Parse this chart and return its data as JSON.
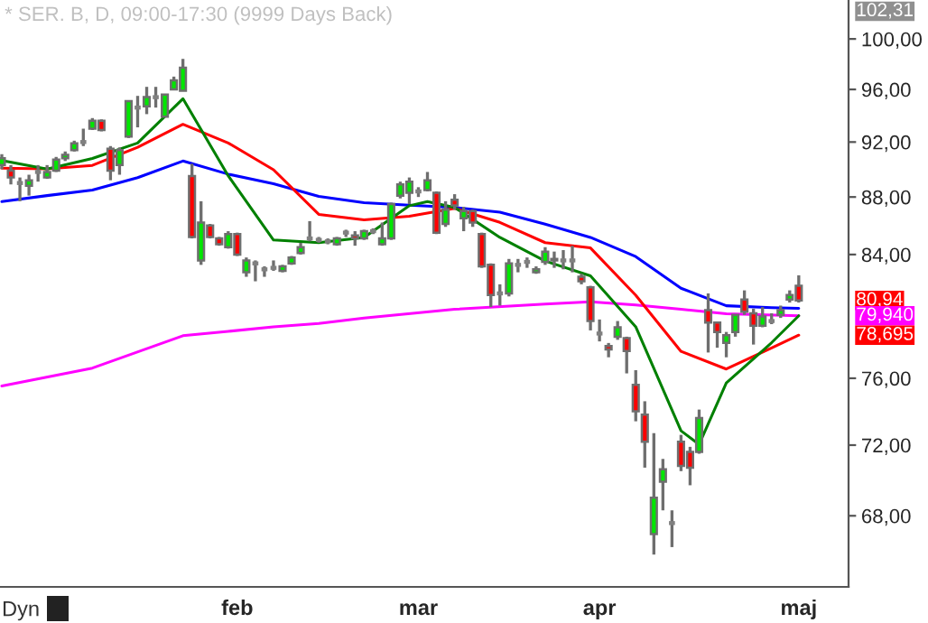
{
  "chart_data": {
    "type": "candlestick",
    "title": "* SER. B, D, 09:00-17:30 (9999 Days Back)",
    "categories": [
      null,
      null,
      null,
      null,
      null,
      null,
      null,
      null,
      null,
      null,
      null,
      null,
      null,
      null,
      null,
      null,
      null,
      null,
      null,
      null,
      null,
      null,
      null,
      null,
      null,
      null,
      "feb",
      null,
      null,
      null,
      null,
      null,
      null,
      null,
      null,
      null,
      null,
      null,
      null,
      null,
      null,
      null,
      null,
      null,
      null,
      null,
      "mar",
      null,
      null,
      null,
      null,
      null,
      null,
      null,
      null,
      null,
      null,
      null,
      null,
      null,
      null,
      null,
      null,
      null,
      null,
      null,
      "apr",
      null,
      null,
      null,
      null,
      null,
      null,
      null,
      null,
      null,
      null,
      null,
      null,
      null,
      null,
      null,
      null,
      null,
      null,
      null,
      null,
      null,
      "maj"
    ],
    "ohlc": [
      [
        90.3,
        91.1,
        90.0,
        90.8
      ],
      [
        89.9,
        90.3,
        88.9,
        89.4
      ],
      [
        89.0,
        89.4,
        87.7,
        89.0
      ],
      [
        88.8,
        89.6,
        88.1,
        89.2
      ],
      [
        89.8,
        90.3,
        89.1,
        89.8
      ],
      [
        89.4,
        90.3,
        89.3,
        89.8
      ],
      [
        89.9,
        90.9,
        89.8,
        90.7
      ],
      [
        90.8,
        91.3,
        90.6,
        91.05
      ],
      [
        91.4,
        92.1,
        91.3,
        91.9
      ],
      [
        92.0,
        93.0,
        91.7,
        92.0
      ],
      [
        93.0,
        93.8,
        92.9,
        93.6
      ],
      [
        93.6,
        93.7,
        92.8,
        92.9
      ],
      [
        91.5,
        91.7,
        89.2,
        89.9
      ],
      [
        90.3,
        91.6,
        89.6,
        91.4
      ],
      [
        92.4,
        95.1,
        92.3,
        95.1
      ],
      [
        94.6,
        95.5,
        93.1,
        94.6
      ],
      [
        94.7,
        96.2,
        94.1,
        95.4
      ],
      [
        95.4,
        96.2,
        94.6,
        95.4
      ],
      [
        93.9,
        95.6,
        93.9,
        95.6
      ],
      [
        96.0,
        97.0,
        96.0,
        96.7
      ],
      [
        95.9,
        98.4,
        95.9,
        97.7
      ],
      [
        89.5,
        90.4,
        85.1,
        85.2
      ],
      [
        83.6,
        87.7,
        83.3,
        86.2
      ],
      [
        86.0,
        86.1,
        85.1,
        85.2
      ],
      [
        85.1,
        85.2,
        84.6,
        84.7
      ],
      [
        84.5,
        85.6,
        84.4,
        85.4
      ],
      [
        85.4,
        85.5,
        83.9,
        84.0
      ],
      [
        82.8,
        83.8,
        82.5,
        83.6
      ],
      [
        83.4,
        83.6,
        82.2,
        83.4
      ],
      [
        83.0,
        83.2,
        82.5,
        83.0
      ],
      [
        83.1,
        83.6,
        82.9,
        83.1
      ],
      [
        82.9,
        83.3,
        82.8,
        83.2
      ],
      [
        83.4,
        83.9,
        83.3,
        83.8
      ],
      [
        84.1,
        84.8,
        84.0,
        84.5
      ],
      [
        85.1,
        86.3,
        84.9,
        85.1
      ],
      [
        85.0,
        85.2,
        84.8,
        85.0
      ],
      [
        84.9,
        85.1,
        84.7,
        84.9
      ],
      [
        84.7,
        85.2,
        84.6,
        85.1
      ],
      [
        85.5,
        85.7,
        85.2,
        85.5
      ],
      [
        85.3,
        85.6,
        84.6,
        85.1
      ],
      [
        85.1,
        85.7,
        85.0,
        85.6
      ],
      [
        85.6,
        85.8,
        85.4,
        85.6
      ],
      [
        84.7,
        86.2,
        84.6,
        85.1
      ],
      [
        85.1,
        87.6,
        85.0,
        87.5
      ],
      [
        88.1,
        89.1,
        87.9,
        88.9
      ],
      [
        88.3,
        89.4,
        87.5,
        89.1
      ],
      [
        88.4,
        88.7,
        88.0,
        88.4
      ],
      [
        88.5,
        89.8,
        88.4,
        89.2
      ],
      [
        88.3,
        88.4,
        85.4,
        85.5
      ],
      [
        86.1,
        87.7,
        85.9,
        87.1
      ],
      [
        87.8,
        88.2,
        87.1,
        87.4
      ],
      [
        86.5,
        87.3,
        85.6,
        87.0
      ],
      [
        87.0,
        87.1,
        85.9,
        86.2
      ],
      [
        85.4,
        85.5,
        83.1,
        83.2
      ],
      [
        83.3,
        83.4,
        80.5,
        81.3
      ],
      [
        81.4,
        82.0,
        80.6,
        81.4
      ],
      [
        81.4,
        83.7,
        81.2,
        83.4
      ],
      [
        83.3,
        83.7,
        82.8,
        83.3
      ],
      [
        83.5,
        83.8,
        83.1,
        83.5
      ],
      [
        82.8,
        83.2,
        82.7,
        83.0
      ],
      [
        83.5,
        84.5,
        83.3,
        84.2
      ],
      [
        83.7,
        84.2,
        83.1,
        83.6
      ],
      [
        83.6,
        84.3,
        83.0,
        83.6
      ],
      [
        83.6,
        84.6,
        82.8,
        83.6
      ],
      [
        82.5,
        82.7,
        82.0,
        82.2
      ],
      [
        81.8,
        81.9,
        79.0,
        79.6
      ],
      [
        78.8,
        79.7,
        78.3,
        78.8
      ],
      [
        78.0,
        78.2,
        77.3,
        77.8
      ],
      [
        78.6,
        79.6,
        78.4,
        79.2
      ],
      [
        78.5,
        78.6,
        76.3,
        77.7
      ],
      [
        75.6,
        76.5,
        73.4,
        74.0
      ],
      [
        73.8,
        74.6,
        70.7,
        72.2
      ],
      [
        67.0,
        72.7,
        65.9,
        69.0
      ],
      [
        69.9,
        71.2,
        68.3,
        70.6
      ],
      [
        67.6,
        68.3,
        66.3,
        67.6
      ],
      [
        72.2,
        72.6,
        70.5,
        70.8
      ],
      [
        71.6,
        71.9,
        69.7,
        70.7
      ],
      [
        71.6,
        74.1,
        71.5,
        73.6
      ],
      [
        80.3,
        81.4,
        77.6,
        79.5
      ],
      [
        79.5,
        79.5,
        77.9,
        78.9
      ],
      [
        78.2,
        78.9,
        77.3,
        78.7
      ],
      [
        78.9,
        80.0,
        78.6,
        80.0
      ],
      [
        81.0,
        81.6,
        80.0,
        80.2
      ],
      [
        80.1,
        80.4,
        78.1,
        79.3
      ],
      [
        79.3,
        80.5,
        79.2,
        79.9
      ],
      [
        79.6,
        80.1,
        79.4,
        79.6
      ],
      [
        80.0,
        80.6,
        79.8,
        80.3
      ],
      [
        81.0,
        81.6,
        80.8,
        81.3
      ],
      [
        81.9,
        82.6,
        80.8,
        80.94
      ]
    ],
    "colors": [
      "#00e600",
      "#ff0000",
      "#808080",
      "#00e600",
      "#808080",
      "#00e600",
      "#00e600",
      "#00e600",
      "#00e600",
      "#808080",
      "#00e600",
      "#ff0000",
      "#ff0000",
      "#00e600",
      "#00e600",
      "#808080",
      "#00e600",
      "#808080",
      "#00e600",
      "#00e600",
      "#00e600",
      "#ff0000",
      "#00e600",
      "#ff0000",
      "#ff0000",
      "#00e600",
      "#ff0000",
      "#00e600",
      "#808080",
      "#808080",
      "#808080",
      "#00e600",
      "#00e600",
      "#00e600",
      "#808080",
      "#808080",
      "#808080",
      "#00e600",
      "#808080",
      "#ff0000",
      "#00e600",
      "#808080",
      "#00e600",
      "#00e600",
      "#00e600",
      "#00e600",
      "#808080",
      "#00e600",
      "#ff0000",
      "#00e600",
      "#ff0000",
      "#00e600",
      "#ff0000",
      "#ff0000",
      "#ff0000",
      "#808080",
      "#00e600",
      "#808080",
      "#808080",
      "#00e600",
      "#00e600",
      "#ff0000",
      "#808080",
      "#808080",
      "#ff0000",
      "#ff0000",
      "#808080",
      "#ff0000",
      "#00e600",
      "#ff0000",
      "#ff0000",
      "#ff0000",
      "#00e600",
      "#00e600",
      "#808080",
      "#ff0000",
      "#ff0000",
      "#00e600",
      "#ff0000",
      "#ff0000",
      "#00e600",
      "#00e600",
      "#ff0000",
      "#ff0000",
      "#00e600",
      "#808080",
      "#00e600",
      "#00e600",
      "#ff0000"
    ],
    "series": [
      {
        "type": "line",
        "color": "#ff00ff",
        "values": [
          75.53,
          null,
          null,
          null,
          null,
          null,
          null,
          null,
          null,
          null,
          76.63,
          null,
          null,
          null,
          null,
          null,
          null,
          null,
          null,
          null,
          78.66,
          null,
          null,
          null,
          null,
          78.94,
          null,
          null,
          null,
          null,
          79.23,
          null,
          null,
          null,
          null,
          79.45,
          null,
          null,
          null,
          null,
          79.79,
          null,
          null,
          null,
          null,
          null,
          null,
          null,
          null,
          null,
          80.36,
          null,
          null,
          null,
          null,
          null,
          null,
          null,
          null,
          null,
          80.7,
          null,
          null,
          null,
          null,
          80.85,
          null,
          null,
          null,
          null,
          80.64,
          null,
          null,
          null,
          null,
          80.36,
          null,
          null,
          null,
          null,
          80.07,
          null,
          null,
          null,
          null,
          null,
          null,
          null,
          79.94
        ]
      },
      {
        "type": "line",
        "color": "#0000ff",
        "values": [
          87.67,
          null,
          null,
          null,
          null,
          88.1,
          null,
          null,
          null,
          null,
          88.5,
          null,
          null,
          null,
          null,
          89.39,
          null,
          null,
          null,
          null,
          90.6,
          null,
          null,
          null,
          null,
          89.64,
          null,
          null,
          null,
          null,
          88.95,
          null,
          null,
          null,
          null,
          88.04,
          null,
          null,
          null,
          null,
          87.6,
          null,
          null,
          null,
          null,
          87.42,
          null,
          null,
          null,
          null,
          87.26,
          null,
          null,
          null,
          null,
          86.93,
          null,
          null,
          null,
          null,
          86.09,
          null,
          null,
          null,
          null,
          85.17,
          null,
          null,
          null,
          null,
          83.86,
          null,
          null,
          null,
          null,
          81.74,
          null,
          null,
          null,
          null,
          80.59,
          null,
          null,
          null,
          null,
          80.47,
          null,
          null,
          80.42
        ]
      },
      {
        "type": "line",
        "color": "#ff0000",
        "values": [
          90.08,
          null,
          null,
          null,
          null,
          90.03,
          null,
          null,
          null,
          null,
          90.28,
          null,
          null,
          null,
          null,
          91.61,
          null,
          null,
          null,
          null,
          93.33,
          null,
          null,
          null,
          null,
          91.93,
          null,
          null,
          null,
          null,
          89.96,
          null,
          null,
          null,
          null,
          86.77,
          null,
          null,
          null,
          null,
          86.39,
          null,
          null,
          null,
          null,
          86.64,
          null,
          null,
          null,
          null,
          87.2,
          null,
          null,
          null,
          null,
          86.21,
          null,
          null,
          null,
          null,
          84.81,
          null,
          null,
          null,
          null,
          84.45,
          null,
          null,
          null,
          null,
          81.28,
          null,
          null,
          null,
          null,
          77.67,
          null,
          null,
          null,
          null,
          76.57,
          null,
          null,
          null,
          null,
          77.89,
          null,
          null,
          78.695
        ]
      },
      {
        "type": "line",
        "color": "#008000",
        "values": [
          90.63,
          null,
          null,
          null,
          null,
          90.01,
          null,
          null,
          null,
          null,
          90.79,
          null,
          null,
          null,
          null,
          91.93,
          null,
          null,
          null,
          null,
          95.28,
          null,
          null,
          null,
          null,
          89.52,
          null,
          null,
          null,
          null,
          84.99,
          null,
          null,
          null,
          null,
          84.81,
          null,
          null,
          null,
          null,
          85.17,
          null,
          null,
          null,
          null,
          87.38,
          null,
          87.67,
          null,
          null,
          87.26,
          null,
          null,
          null,
          null,
          85.17,
          null,
          null,
          null,
          null,
          83.56,
          null,
          null,
          null,
          null,
          82.56,
          null,
          null,
          null,
          null,
          79.23,
          null,
          null,
          null,
          null,
          72.84,
          null,
          72.04,
          null,
          null,
          75.71,
          null,
          null,
          null,
          null,
          78.22,
          null,
          null,
          79.94
        ]
      }
    ],
    "log": "y",
    "ylim": [
      64.2,
      103.2
    ],
    "yticks": [
      {
        "value": 68,
        "label": "68,00"
      },
      {
        "value": 72,
        "label": "72,00"
      },
      {
        "value": 76,
        "label": "76,00"
      },
      {
        "value": 84,
        "label": "84,00"
      },
      {
        "value": 88,
        "label": "88,00"
      },
      {
        "value": 92,
        "label": "92,00"
      },
      {
        "value": 96,
        "label": "96,00"
      },
      {
        "value": 100,
        "label": "100,00"
      }
    ],
    "annotations": [
      "102,31",
      "80,94",
      "79,940",
      "78,695",
      "Dyn"
    ]
  }
}
